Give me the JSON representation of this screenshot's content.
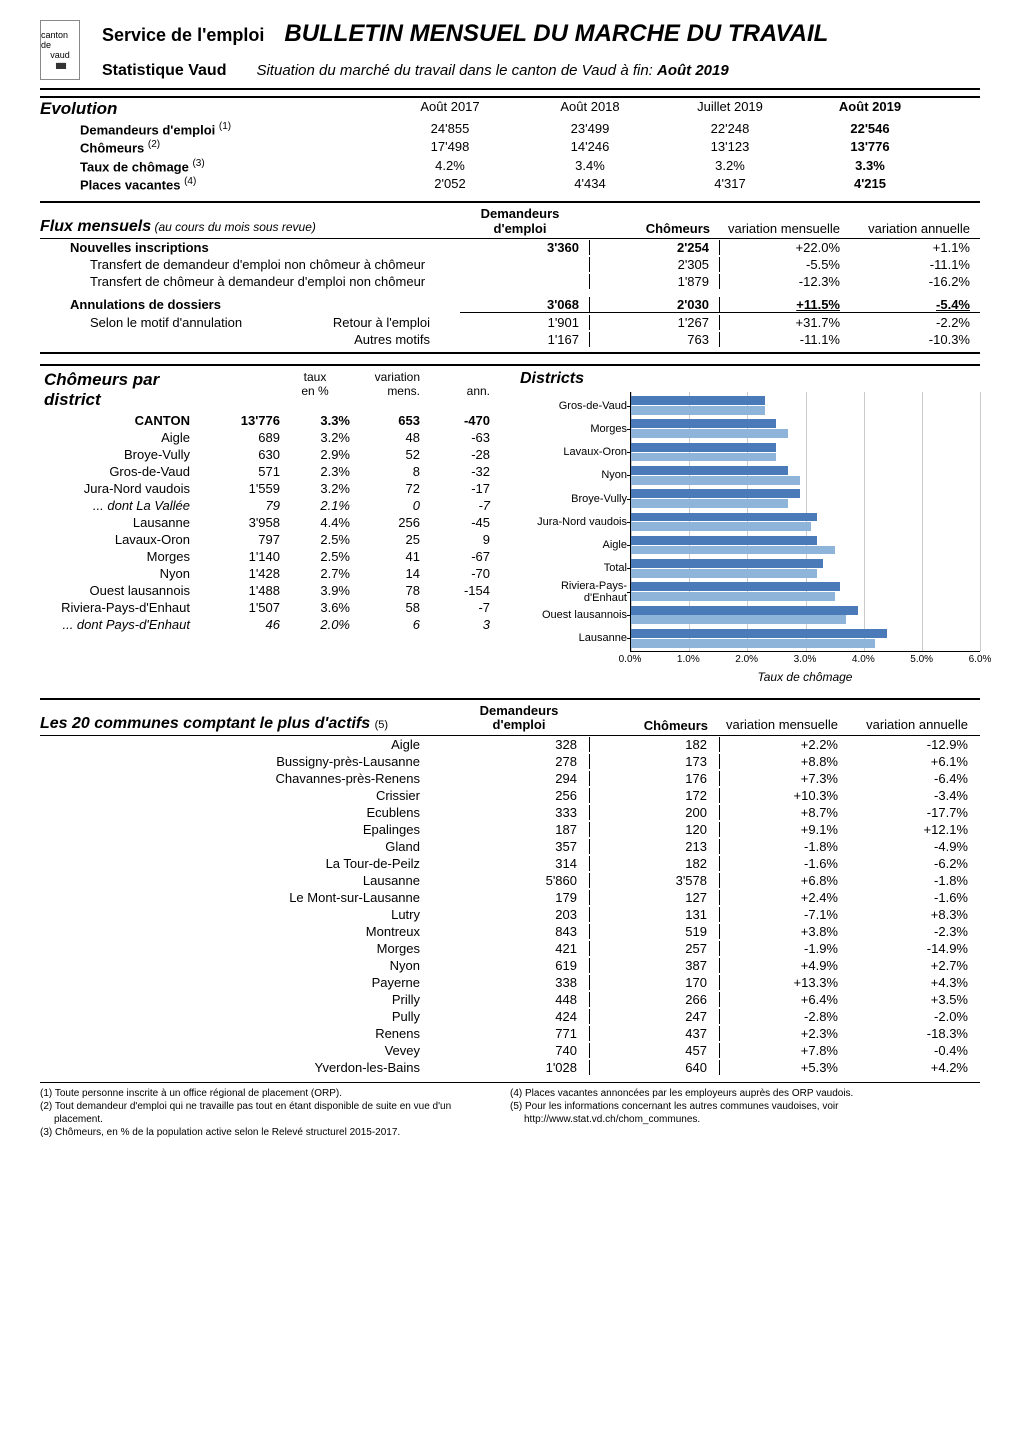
{
  "header": {
    "logo_text_top": "canton de",
    "logo_text_mid": "vaud",
    "service": "Service de l'emploi",
    "title": "BULLETIN MENSUEL DU MARCHE DU TRAVAIL",
    "stat_vaud": "Statistique Vaud",
    "situation_prefix": "Situation du marché du travail dans le canton de Vaud à fin: ",
    "situation_date": "Août 2019"
  },
  "evolution": {
    "title": "Evolution",
    "cols": [
      "Août 2017",
      "Août 2018",
      "Juillet 2019",
      "Août 2019"
    ],
    "rows": [
      {
        "label": "Demandeurs d'emploi",
        "sup": "(1)",
        "vals": [
          "24'855",
          "23'499",
          "22'248",
          "22'546"
        ]
      },
      {
        "label": "Chômeurs",
        "sup": "(2)",
        "vals": [
          "17'498",
          "14'246",
          "13'123",
          "13'776"
        ]
      },
      {
        "label": "Taux de chômage",
        "sup": "(3)",
        "vals": [
          "4.2%",
          "3.4%",
          "3.2%",
          "3.3%"
        ]
      },
      {
        "label": "Places vacantes",
        "sup": "(4)",
        "vals": [
          "2'052",
          "4'434",
          "4'317",
          "4'215"
        ]
      }
    ]
  },
  "flux": {
    "title": "Flux mensuels",
    "title_note": " (au cours du mois sous revue)",
    "cols": [
      "Demandeurs d'emploi",
      "Chômeurs",
      "variation mensuelle",
      "variation annuelle"
    ],
    "nouvelles": {
      "label": "Nouvelles inscriptions",
      "vals": [
        "3'360",
        "2'254",
        "+22.0%",
        "+1.1%"
      ]
    },
    "transfer1": {
      "label": "Transfert de demandeur d'emploi non chômeur à chômeur",
      "vals": [
        "",
        "2'305",
        "-5.5%",
        "-11.1%"
      ]
    },
    "transfer2": {
      "label": "Transfert de chômeur à demandeur d'emploi non chômeur",
      "vals": [
        "",
        "1'879",
        "-12.3%",
        "-16.2%"
      ]
    },
    "annulations": {
      "label": "Annulations de dossiers",
      "vals": [
        "3'068",
        "2'030",
        "+11.5%",
        "-5.4%"
      ]
    },
    "motif_label": "Selon le motif d'annulation",
    "retour": {
      "label": "Retour à l'emploi",
      "vals": [
        "1'901",
        "1'267",
        "+31.7%",
        "-2.2%"
      ]
    },
    "autres": {
      "label": "Autres motifs",
      "vals": [
        "1'167",
        "763",
        "-11.1%",
        "-10.3%"
      ]
    }
  },
  "districts": {
    "title": "Chômeurs par district",
    "cols": [
      "taux en %",
      "variation mens.",
      "ann."
    ],
    "col_short": [
      "",
      "taux",
      "variation",
      ""
    ],
    "col_sub": [
      "",
      "en %",
      "mens.",
      "ann."
    ],
    "rows": [
      {
        "name": "CANTON",
        "n": "13'776",
        "taux": "3.3%",
        "mens": "653",
        "ann": "-470",
        "bold": true
      },
      {
        "name": "Aigle",
        "n": "689",
        "taux": "3.2%",
        "mens": "48",
        "ann": "-63"
      },
      {
        "name": "Broye-Vully",
        "n": "630",
        "taux": "2.9%",
        "mens": "52",
        "ann": "-28"
      },
      {
        "name": "Gros-de-Vaud",
        "n": "571",
        "taux": "2.3%",
        "mens": "8",
        "ann": "-32"
      },
      {
        "name": "Jura-Nord vaudois",
        "n": "1'559",
        "taux": "3.2%",
        "mens": "72",
        "ann": "-17"
      },
      {
        "name": "... dont La Vallée",
        "n": "79",
        "taux": "2.1%",
        "mens": "0",
        "ann": "-7",
        "italic": true
      },
      {
        "name": "Lausanne",
        "n": "3'958",
        "taux": "4.4%",
        "mens": "256",
        "ann": "-45"
      },
      {
        "name": "Lavaux-Oron",
        "n": "797",
        "taux": "2.5%",
        "mens": "25",
        "ann": "9"
      },
      {
        "name": "Morges",
        "n": "1'140",
        "taux": "2.5%",
        "mens": "41",
        "ann": "-67"
      },
      {
        "name": "Nyon",
        "n": "1'428",
        "taux": "2.7%",
        "mens": "14",
        "ann": "-70"
      },
      {
        "name": "Ouest lausannois",
        "n": "1'488",
        "taux": "3.9%",
        "mens": "78",
        "ann": "-154"
      },
      {
        "name": "Riviera-Pays-d'Enhaut",
        "n": "1'507",
        "taux": "3.6%",
        "mens": "58",
        "ann": "-7"
      },
      {
        "name": "... dont Pays-d'Enhaut",
        "n": "46",
        "taux": "2.0%",
        "mens": "6",
        "ann": "3",
        "italic": true
      }
    ]
  },
  "chart": {
    "title": "Districts",
    "type": "horizontal-bar-paired",
    "x_label": "Taux de chômage",
    "x_min": 0.0,
    "x_max": 6.0,
    "x_step": 1.0,
    "x_ticks": [
      "0.0%",
      "1.0%",
      "2.0%",
      "3.0%",
      "4.0%",
      "5.0%",
      "6.0%"
    ],
    "series_colors": [
      "#4a7ab8",
      "#8fb4d9"
    ],
    "background_color": "#ffffff",
    "grid_color": "#cccccc",
    "bars": [
      {
        "label": "Gros-de-Vaud",
        "values": [
          2.3,
          2.3
        ]
      },
      {
        "label": "Morges",
        "values": [
          2.5,
          2.7
        ]
      },
      {
        "label": "Lavaux-Oron",
        "values": [
          2.5,
          2.5
        ]
      },
      {
        "label": "Nyon",
        "values": [
          2.7,
          2.9
        ]
      },
      {
        "label": "Broye-Vully",
        "values": [
          2.9,
          2.7
        ]
      },
      {
        "label": "Jura-Nord vaudois",
        "values": [
          3.2,
          3.1
        ]
      },
      {
        "label": "Aigle",
        "values": [
          3.2,
          3.5
        ]
      },
      {
        "label": "Total",
        "values": [
          3.3,
          3.2
        ]
      },
      {
        "label": "Riviera-Pays-d'Enhaut",
        "values": [
          3.6,
          3.5
        ]
      },
      {
        "label": "Ouest lausannois",
        "values": [
          3.9,
          3.7
        ]
      },
      {
        "label": "Lausanne",
        "values": [
          4.4,
          4.2
        ]
      }
    ]
  },
  "communes": {
    "title": "Les 20 communes comptant le plus d'actifs",
    "title_sup": "(5)",
    "cols": [
      "Demandeurs d'emploi",
      "Chômeurs",
      "variation mensuelle",
      "variation annuelle"
    ],
    "rows": [
      {
        "name": "Aigle",
        "de": "328",
        "ch": "182",
        "vm": "+2.2%",
        "va": "-12.9%"
      },
      {
        "name": "Bussigny-près-Lausanne",
        "de": "278",
        "ch": "173",
        "vm": "+8.8%",
        "va": "+6.1%"
      },
      {
        "name": "Chavannes-près-Renens",
        "de": "294",
        "ch": "176",
        "vm": "+7.3%",
        "va": "-6.4%"
      },
      {
        "name": "Crissier",
        "de": "256",
        "ch": "172",
        "vm": "+10.3%",
        "va": "-3.4%"
      },
      {
        "name": "Ecublens",
        "de": "333",
        "ch": "200",
        "vm": "+8.7%",
        "va": "-17.7%"
      },
      {
        "name": "Epalinges",
        "de": "187",
        "ch": "120",
        "vm": "+9.1%",
        "va": "+12.1%"
      },
      {
        "name": "Gland",
        "de": "357",
        "ch": "213",
        "vm": "-1.8%",
        "va": "-4.9%"
      },
      {
        "name": "La Tour-de-Peilz",
        "de": "314",
        "ch": "182",
        "vm": "-1.6%",
        "va": "-6.2%"
      },
      {
        "name": "Lausanne",
        "de": "5'860",
        "ch": "3'578",
        "vm": "+6.8%",
        "va": "-1.8%"
      },
      {
        "name": "Le Mont-sur-Lausanne",
        "de": "179",
        "ch": "127",
        "vm": "+2.4%",
        "va": "-1.6%"
      },
      {
        "name": "Lutry",
        "de": "203",
        "ch": "131",
        "vm": "-7.1%",
        "va": "+8.3%"
      },
      {
        "name": "Montreux",
        "de": "843",
        "ch": "519",
        "vm": "+3.8%",
        "va": "-2.3%"
      },
      {
        "name": "Morges",
        "de": "421",
        "ch": "257",
        "vm": "-1.9%",
        "va": "-14.9%"
      },
      {
        "name": "Nyon",
        "de": "619",
        "ch": "387",
        "vm": "+4.9%",
        "va": "+2.7%"
      },
      {
        "name": "Payerne",
        "de": "338",
        "ch": "170",
        "vm": "+13.3%",
        "va": "+4.3%"
      },
      {
        "name": "Prilly",
        "de": "448",
        "ch": "266",
        "vm": "+6.4%",
        "va": "+3.5%"
      },
      {
        "name": "Pully",
        "de": "424",
        "ch": "247",
        "vm": "-2.8%",
        "va": "-2.0%"
      },
      {
        "name": "Renens",
        "de": "771",
        "ch": "437",
        "vm": "+2.3%",
        "va": "-18.3%"
      },
      {
        "name": "Vevey",
        "de": "740",
        "ch": "457",
        "vm": "+7.8%",
        "va": "-0.4%"
      },
      {
        "name": "Yverdon-les-Bains",
        "de": "1'028",
        "ch": "640",
        "vm": "+5.3%",
        "va": "+4.2%"
      }
    ]
  },
  "footnotes": {
    "left": [
      "(1) Toute personne inscrite à un office régional de placement (ORP).",
      "(2) Tout demandeur d'emploi qui ne travaille pas tout en étant disponible de suite en vue d'un placement.",
      "(3) Chômeurs, en % de la population active selon le Relevé structurel 2015-2017."
    ],
    "right": [
      "(4) Places vacantes annoncées par les employeurs auprès des ORP vaudois.",
      "(5) Pour les informations concernant les autres communes vaudoises, voir http://www.stat.vd.ch/chom_communes."
    ]
  }
}
